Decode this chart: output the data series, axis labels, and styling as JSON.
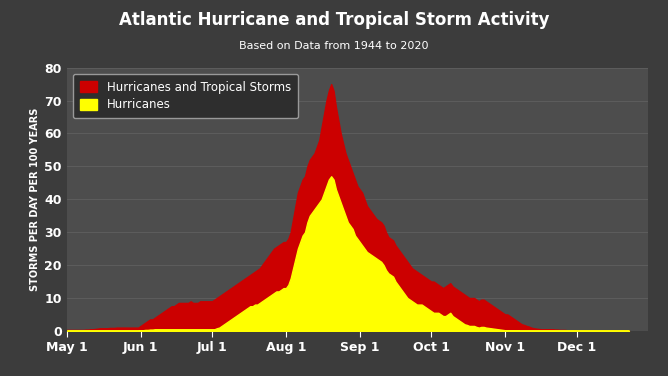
{
  "title": "Atlantic Hurricane and Tropical Storm Activity",
  "subtitle": "Based on Data from 1944 to 2020",
  "ylabel": "STORMS PER DAY PER 100 YEARS",
  "ylim": [
    0,
    80
  ],
  "yticks": [
    0,
    10,
    20,
    30,
    40,
    50,
    60,
    70,
    80
  ],
  "bg_color": "#3c3c3c",
  "plot_bg_color": "#4d4d4d",
  "grid_color": "#606060",
  "text_color": "#ffffff",
  "named_color": "#cc0000",
  "hurricane_color": "#ffff00",
  "legend_bg": "#2e2e2e",
  "legend_edge": "#999999",
  "xtick_labels": [
    "May 1",
    "Jun 1",
    "Jul 1",
    "Aug 1",
    "Sep 1",
    "Oct 1",
    "Nov 1",
    "Dec 1"
  ],
  "named_storms": [
    0.3,
    0.3,
    0.3,
    0.3,
    0.3,
    0.3,
    0.3,
    0.3,
    0.4,
    0.4,
    0.5,
    0.5,
    0.6,
    0.7,
    0.8,
    0.8,
    0.8,
    0.8,
    0.9,
    0.9,
    0.9,
    1.0,
    1.0,
    1.0,
    1.0,
    1.0,
    1.0,
    1.0,
    1.0,
    1.0,
    1.0,
    1.5,
    2.0,
    2.5,
    3.0,
    3.5,
    3.5,
    4.0,
    4.5,
    5.0,
    5.5,
    6.0,
    6.5,
    7.0,
    7.5,
    7.5,
    8.0,
    8.5,
    8.5,
    8.5,
    8.5,
    8.5,
    9.0,
    8.5,
    8.5,
    8.5,
    9.0,
    9.0,
    9.0,
    9.0,
    9.0,
    9.0,
    9.5,
    10.0,
    10.5,
    11.0,
    11.5,
    12.0,
    12.5,
    13.0,
    13.5,
    14.0,
    14.5,
    15.0,
    15.5,
    16.0,
    16.5,
    17.0,
    17.5,
    18.0,
    18.5,
    19.0,
    20.0,
    21.0,
    22.0,
    23.0,
    24.0,
    25.0,
    25.5,
    26.0,
    26.5,
    27.0,
    27.0,
    28.0,
    30.0,
    34.0,
    38.0,
    42.0,
    44.0,
    46.0,
    47.0,
    50.0,
    52.0,
    53.0,
    54.0,
    56.0,
    58.0,
    62.0,
    66.0,
    70.0,
    73.0,
    75.0,
    73.0,
    68.0,
    64.0,
    60.0,
    57.0,
    54.0,
    52.0,
    50.0,
    48.0,
    46.0,
    44.0,
    43.0,
    42.0,
    40.0,
    38.0,
    37.0,
    36.0,
    35.0,
    34.0,
    33.5,
    33.0,
    32.0,
    30.0,
    28.5,
    28.0,
    27.5,
    26.0,
    25.0,
    24.0,
    23.0,
    22.0,
    21.0,
    20.0,
    19.0,
    18.5,
    18.0,
    17.5,
    17.0,
    16.5,
    16.0,
    15.5,
    15.0,
    15.0,
    14.5,
    14.0,
    13.5,
    13.0,
    13.5,
    14.0,
    14.5,
    13.5,
    13.0,
    12.5,
    12.0,
    11.5,
    11.0,
    10.5,
    10.0,
    10.0,
    10.0,
    9.5,
    9.0,
    9.5,
    9.5,
    9.0,
    8.5,
    8.0,
    7.5,
    7.0,
    6.5,
    6.0,
    5.5,
    5.0,
    5.0,
    4.5,
    4.0,
    3.5,
    3.0,
    2.5,
    2.0,
    1.8,
    1.5,
    1.3,
    1.0,
    0.8,
    0.7,
    0.6,
    0.5,
    0.5,
    0.5,
    0.5,
    0.5,
    0.5,
    0.4,
    0.4,
    0.3,
    0.3,
    0.3,
    0.2,
    0.2,
    0.1,
    0.1,
    0.1,
    0.1,
    0.1,
    0.1,
    0.1,
    0.1,
    0.1,
    0.1,
    0.1,
    0.1,
    0.1,
    0.1,
    0.1,
    0.1,
    0.1,
    0.1,
    0.1,
    0.1,
    0.1,
    0.1,
    0.1,
    0.1,
    0.1
  ],
  "hurricanes": [
    0.1,
    0.1,
    0.1,
    0.1,
    0.1,
    0.1,
    0.1,
    0.1,
    0.1,
    0.1,
    0.1,
    0.1,
    0.1,
    0.1,
    0.1,
    0.1,
    0.1,
    0.1,
    0.1,
    0.1,
    0.1,
    0.1,
    0.1,
    0.1,
    0.1,
    0.1,
    0.1,
    0.1,
    0.1,
    0.1,
    0.1,
    0.2,
    0.2,
    0.3,
    0.3,
    0.4,
    0.4,
    0.5,
    0.5,
    0.5,
    0.5,
    0.5,
    0.5,
    0.5,
    0.5,
    0.5,
    0.5,
    0.5,
    0.5,
    0.5,
    0.5,
    0.5,
    0.5,
    0.5,
    0.5,
    0.5,
    0.5,
    0.5,
    0.5,
    0.5,
    0.5,
    0.5,
    0.5,
    0.8,
    1.0,
    1.5,
    2.0,
    2.5,
    3.0,
    3.5,
    4.0,
    4.5,
    5.0,
    5.5,
    6.0,
    6.5,
    7.0,
    7.5,
    7.5,
    8.0,
    8.0,
    8.5,
    9.0,
    9.5,
    10.0,
    10.5,
    11.0,
    11.5,
    12.0,
    12.0,
    12.5,
    13.0,
    13.0,
    14.0,
    16.0,
    19.0,
    22.0,
    25.0,
    27.0,
    29.0,
    30.0,
    33.0,
    35.0,
    36.0,
    37.0,
    38.0,
    39.0,
    40.0,
    42.0,
    44.0,
    46.0,
    47.0,
    46.0,
    43.0,
    41.0,
    39.0,
    37.0,
    35.0,
    33.0,
    32.0,
    31.0,
    29.0,
    28.0,
    27.0,
    26.0,
    25.0,
    24.0,
    23.5,
    23.0,
    22.5,
    22.0,
    21.5,
    21.0,
    20.0,
    18.5,
    17.5,
    17.0,
    16.5,
    15.0,
    14.0,
    13.0,
    12.0,
    11.0,
    10.0,
    9.5,
    9.0,
    8.5,
    8.0,
    8.0,
    8.0,
    7.5,
    7.0,
    6.5,
    6.0,
    5.5,
    5.5,
    5.5,
    5.0,
    4.5,
    4.5,
    5.0,
    5.5,
    4.5,
    4.0,
    3.5,
    3.0,
    2.5,
    2.0,
    1.8,
    1.5,
    1.5,
    1.5,
    1.2,
    1.0,
    1.2,
    1.2,
    1.0,
    0.9,
    0.8,
    0.7,
    0.6,
    0.5,
    0.4,
    0.3,
    0.2,
    0.2,
    0.2,
    0.2,
    0.2,
    0.2,
    0.1,
    0.1,
    0.1,
    0.1,
    0.1,
    0.1,
    0.1,
    0.1,
    0.1,
    0.1,
    0.1,
    0.1,
    0.1,
    0.1,
    0.1,
    0.1,
    0.1,
    0.1,
    0.1,
    0.1,
    0.1,
    0.1,
    0.1,
    0.1,
    0.1,
    0.1,
    0.1,
    0.1,
    0.1,
    0.1,
    0.1,
    0.1,
    0.1,
    0.1,
    0.1,
    0.1,
    0.1,
    0.1,
    0.1,
    0.1,
    0.1,
    0.1,
    0.1,
    0.1,
    0.1,
    0.1,
    0.1
  ]
}
